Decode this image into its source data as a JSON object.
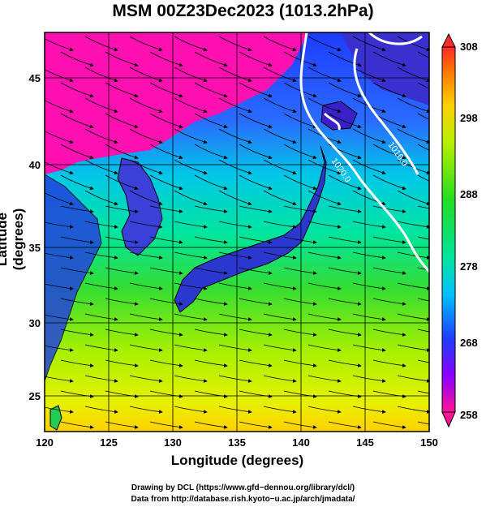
{
  "title": "MSM 00Z23Dec2023 (1013.2hPa)",
  "axes": {
    "xlabel": "Longitude (degrees)",
    "ylabel": "Latitude  (degrees)",
    "x_ticks": [
      "120",
      "125",
      "130",
      "135",
      "140",
      "145",
      "150"
    ],
    "y_ticks": [
      "25",
      "30",
      "35",
      "40",
      "45"
    ],
    "x_range": [
      120,
      150
    ],
    "y_range": [
      22.5,
      47.5
    ]
  },
  "colorbar": {
    "ticks": [
      "308",
      "298",
      "288",
      "278",
      "268",
      "258"
    ],
    "range": [
      258,
      308
    ],
    "colors": [
      "#ff1493",
      "#8b00ff",
      "#1e3cff",
      "#00bfff",
      "#00e5a0",
      "#22dd22",
      "#b8f000",
      "#ffd000",
      "#ff7a00",
      "#ff2a2a"
    ]
  },
  "contours": [
    "1020.0",
    "1016.0"
  ],
  "credits": {
    "line1": "Drawing by DCL (https://www.gfd−dennou.org/library/dcl/)",
    "line2": "Data from http://database.rish.kyoto−u.ac.jp/arch/jmadata/"
  }
}
